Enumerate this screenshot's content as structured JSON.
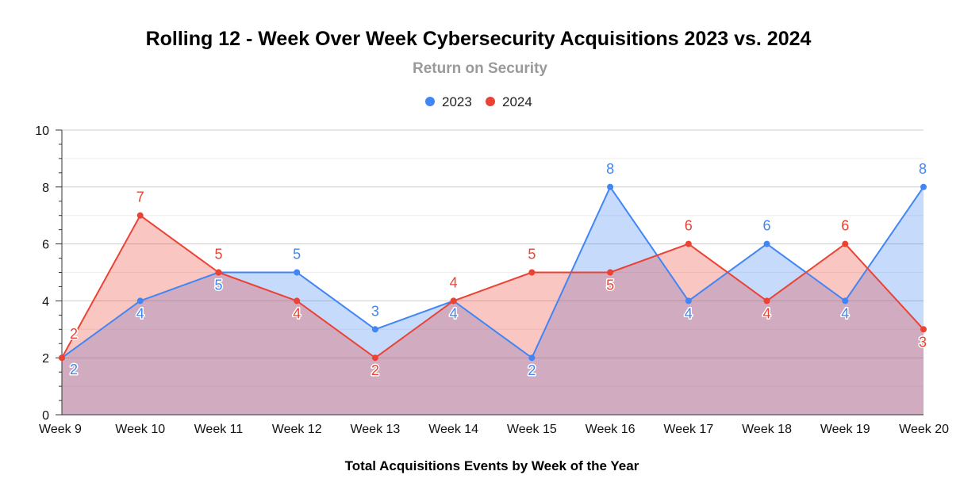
{
  "chart_data": {
    "type": "area",
    "title": "Rolling 12 - Week Over Week Cybersecurity Acquisitions 2023 vs. 2024",
    "subtitle": "Return on Security",
    "xlabel": "Total Acquisitions Events by Week of the Year",
    "ylabel": "",
    "ylim": [
      0,
      10
    ],
    "yticks": [
      0,
      2,
      4,
      6,
      8,
      10
    ],
    "legend_position": "top-center",
    "grid": true,
    "categories": [
      "Week 9",
      "Week 10",
      "Week 11",
      "Week 12",
      "Week 13",
      "Week 14",
      "Week 15",
      "Week 16",
      "Week 17",
      "Week 18",
      "Week 19",
      "Week 20"
    ],
    "series": [
      {
        "name": "2023",
        "color": "#4285f4",
        "values": [
          2,
          4,
          5,
          5,
          3,
          4,
          2,
          8,
          4,
          6,
          4,
          8
        ]
      },
      {
        "name": "2024",
        "color": "#ea4335",
        "values": [
          2,
          7,
          5,
          4,
          2,
          4,
          5,
          5,
          6,
          4,
          6,
          3
        ]
      }
    ]
  }
}
